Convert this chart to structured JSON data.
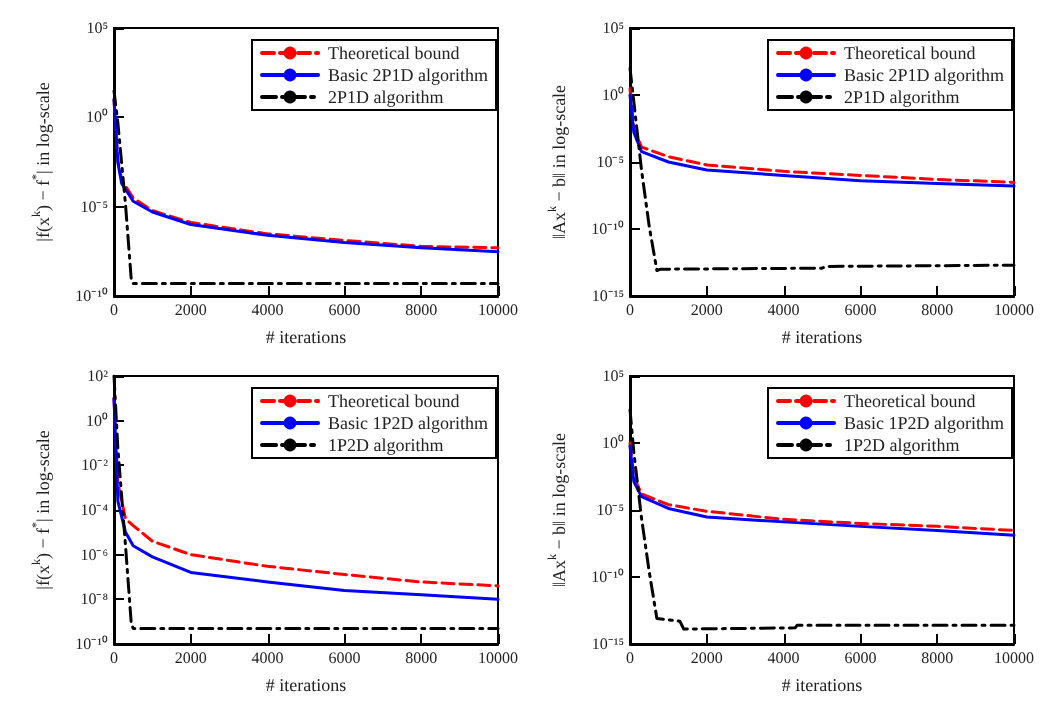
{
  "chart_data": [
    {
      "type": "line",
      "ylabel": "|f(x$^{k}$) − f$^{*}$| in log-scale",
      "xlabel": "# iterations",
      "log": true,
      "grid": false,
      "legend": "top right",
      "marker": "none",
      "xlim": [
        0,
        10000
      ],
      "xticks": [
        0,
        2000,
        4000,
        6000,
        8000,
        10000
      ],
      "ylim": [
        1e-10,
        100000
      ],
      "yticks": [
        {
          "value": 1e-10,
          "label": "10⁻¹⁰"
        },
        {
          "value": 1e-05,
          "label": "10⁻⁵"
        },
        {
          "value": 1,
          "label": "10⁰"
        },
        {
          "value": 100000,
          "label": "10⁵"
        }
      ],
      "series": [
        {
          "name": "Theoretical bound",
          "color": "#ff0000",
          "line_style": "dashed",
          "x": [
            0,
            100,
            200,
            500,
            1000,
            2000,
            4000,
            6000,
            8000,
            10000
          ],
          "values": [
            10,
            0.004,
            0.0003,
            3e-05,
            6e-06,
            1.3e-06,
            3e-07,
            1.3e-07,
            6e-08,
            5e-08
          ]
        },
        {
          "name": "Basic 2P1D algorithm",
          "color": "#0000ff",
          "line_style": "solid",
          "x": [
            0,
            100,
            200,
            500,
            1000,
            2000,
            4000,
            6000,
            8000,
            10000
          ],
          "values": [
            10,
            0.003,
            0.0002,
            2e-05,
            5e-06,
            1e-06,
            2.5e-07,
            1e-07,
            5e-08,
            3e-08
          ]
        },
        {
          "name": "2P1D algorithm",
          "color": "#000000",
          "line_style": "dashdot",
          "x": [
            0,
            100,
            300,
            450,
            500,
            10000
          ],
          "values": [
            30,
            0.5,
            1.3e-05,
            8e-10,
            5e-10,
            5e-10
          ]
        }
      ]
    },
    {
      "type": "line",
      "ylabel": "‖Ax$^{k}$ − b‖ in log-scale",
      "xlabel": "# iterations",
      "log": true,
      "grid": false,
      "legend": "top right",
      "marker": "none",
      "xlim": [
        0,
        10000
      ],
      "xticks": [
        0,
        2000,
        4000,
        6000,
        8000,
        10000
      ],
      "ylim": [
        1e-15,
        100000
      ],
      "yticks": [
        {
          "value": 1e-15,
          "label": "10⁻¹⁵"
        },
        {
          "value": 1e-10,
          "label": "10⁻¹⁰"
        },
        {
          "value": 1e-05,
          "label": "10⁻⁵"
        },
        {
          "value": 1,
          "label": "10⁰"
        },
        {
          "value": 100000,
          "label": "10⁵"
        }
      ],
      "series": [
        {
          "name": "Theoretical bound",
          "color": "#ff0000",
          "line_style": "dashed",
          "x": [
            0,
            100,
            300,
            1000,
            2000,
            4000,
            6000,
            8000,
            10000
          ],
          "values": [
            3,
            0.003,
            0.00013,
            2.5e-05,
            6e-06,
            2e-06,
            1e-06,
            5e-07,
            3e-07
          ]
        },
        {
          "name": "Basic 2P1D algorithm",
          "color": "#0000ff",
          "line_style": "solid",
          "x": [
            0,
            100,
            300,
            1000,
            2000,
            4000,
            6000,
            8000,
            10000
          ],
          "values": [
            1,
            0.0016,
            6e-05,
            1e-05,
            2.5e-06,
            1e-06,
            4e-07,
            2.5e-07,
            1.6e-07
          ]
        },
        {
          "name": "2P1D algorithm",
          "color": "#000000",
          "line_style": "dashdot",
          "x": [
            0,
            100,
            300,
            500,
            700,
            800,
            5000,
            5100,
            10000
          ],
          "values": [
            100,
            0.3,
            2.5e-06,
            1.6e-10,
            8e-14,
            1e-13,
            1.2e-13,
            1.6e-13,
            2e-13
          ]
        }
      ]
    },
    {
      "type": "line",
      "ylabel": "|f(x$^{k}$) − f$^{*}$| in log-scale",
      "xlabel": "# iterations",
      "log": true,
      "grid": false,
      "legend": "top right",
      "marker": "none",
      "xlim": [
        0,
        10000
      ],
      "xticks": [
        0,
        2000,
        4000,
        6000,
        8000,
        10000
      ],
      "ylim": [
        1e-10,
        100
      ],
      "yticks": [
        {
          "value": 1e-10,
          "label": "10⁻¹⁰"
        },
        {
          "value": 1e-08,
          "label": "10⁻⁸"
        },
        {
          "value": 1e-06,
          "label": "10⁻⁶"
        },
        {
          "value": 0.0001,
          "label": "10⁻⁴"
        },
        {
          "value": 0.01,
          "label": "10⁻²"
        },
        {
          "value": 1,
          "label": "10⁰"
        },
        {
          "value": 100,
          "label": "10²"
        }
      ],
      "series": [
        {
          "name": "Theoretical bound",
          "color": "#ff0000",
          "line_style": "dashed",
          "x": [
            0,
            100,
            300,
            500,
            1000,
            2000,
            4000,
            6000,
            8000,
            10000
          ],
          "values": [
            10,
            0.0016,
            4e-05,
            2e-05,
            4e-06,
            1e-06,
            3e-07,
            1.3e-07,
            6e-08,
            4e-08
          ]
        },
        {
          "name": "Basic 1P2D algorithm",
          "color": "#0000ff",
          "line_style": "solid",
          "x": [
            0,
            100,
            300,
            500,
            1000,
            2000,
            4000,
            6000,
            8000,
            10000
          ],
          "values": [
            10,
            0.00025,
            1e-05,
            2.5e-06,
            8e-07,
            1.6e-07,
            6e-08,
            2.5e-08,
            1.6e-08,
            1e-08
          ]
        },
        {
          "name": "1P2D algorithm",
          "color": "#000000",
          "line_style": "dashdot",
          "x": [
            0,
            100,
            300,
            450,
            500,
            10000
          ],
          "values": [
            100,
            0.06,
            2.5e-06,
            8e-10,
            5e-10,
            5e-10
          ]
        }
      ]
    },
    {
      "type": "line",
      "ylabel": "‖Ax$^{k}$ − b‖ in log-scale",
      "xlabel": "# iterations",
      "log": true,
      "grid": false,
      "legend": "top right",
      "marker": "none",
      "xlim": [
        0,
        10000
      ],
      "xticks": [
        0,
        2000,
        4000,
        6000,
        8000,
        10000
      ],
      "ylim": [
        1e-15,
        100000
      ],
      "yticks": [
        {
          "value": 1e-15,
          "label": "10⁻¹⁵"
        },
        {
          "value": 1e-10,
          "label": "10⁻¹⁰"
        },
        {
          "value": 1e-05,
          "label": "10⁻⁵"
        },
        {
          "value": 1,
          "label": "10⁰"
        },
        {
          "value": 100000,
          "label": "10⁵"
        }
      ],
      "series": [
        {
          "name": "Theoretical bound",
          "color": "#ff0000",
          "line_style": "dashed",
          "x": [
            0,
            100,
            300,
            1000,
            2000,
            4000,
            6000,
            8000,
            10000
          ],
          "values": [
            1,
            0.003,
            0.00016,
            2.5e-05,
            8e-06,
            2e-06,
            1e-06,
            6e-07,
            3e-07
          ]
        },
        {
          "name": "Basic 1P2D algorithm",
          "color": "#0000ff",
          "line_style": "solid",
          "x": [
            0,
            100,
            300,
            1000,
            2000,
            4000,
            6000,
            8000,
            10000
          ],
          "values": [
            0.6,
            0.0013,
            0.0001,
            1.3e-05,
            3e-06,
            1.3e-06,
            6e-07,
            3e-07,
            1.3e-07
          ]
        },
        {
          "name": "1P2D algorithm",
          "color": "#000000",
          "line_style": "dashdot",
          "x": [
            0,
            100,
            300,
            500,
            700,
            1300,
            1400,
            4300,
            4350,
            10000
          ],
          "values": [
            300,
            0.2,
            2.5e-06,
            2.5e-10,
            8e-14,
            5e-14,
            1.3e-14,
            1.6e-14,
            2.5e-14,
            2.5e-14
          ]
        }
      ]
    }
  ]
}
